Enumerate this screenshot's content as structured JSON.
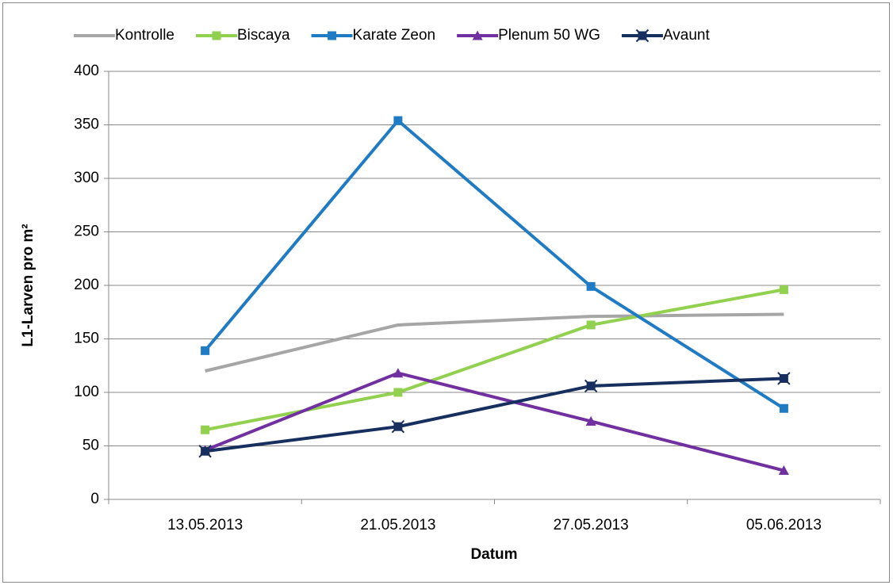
{
  "chart_data": {
    "type": "line",
    "xlabel": "Datum",
    "ylabel": "L1-Larven pro m²",
    "categories": [
      "13.05.2013",
      "21.05.2013",
      "27.05.2013",
      "05.06.2013"
    ],
    "series": [
      {
        "name": "Kontrolle",
        "color": "#a6a6a6",
        "marker": "none",
        "values": [
          120,
          163,
          171,
          173
        ]
      },
      {
        "name": "Biscaya",
        "color": "#92d050",
        "marker": "square",
        "values": [
          65,
          100,
          163,
          196
        ]
      },
      {
        "name": "Karate Zeon",
        "color": "#1f7bc4",
        "marker": "square",
        "values": [
          139,
          354,
          199,
          85
        ]
      },
      {
        "name": "Plenum 50 WG",
        "color": "#7030a0",
        "marker": "triangle",
        "values": [
          46,
          118,
          73,
          27
        ]
      },
      {
        "name": "Avaunt",
        "color": "#172f5e",
        "marker": "star",
        "values": [
          45,
          68,
          106,
          113
        ]
      }
    ],
    "ylim": [
      0,
      400
    ],
    "yticks": [
      0,
      50,
      100,
      150,
      200,
      250,
      300,
      350,
      400
    ],
    "grid": true,
    "legend": "top"
  }
}
